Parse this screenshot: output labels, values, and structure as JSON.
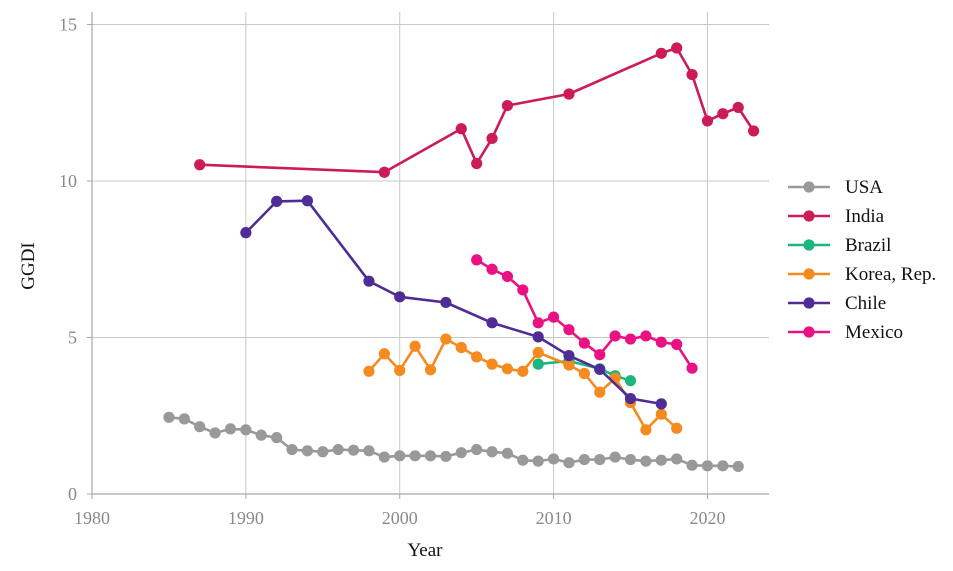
{
  "chart_data": {
    "type": "line",
    "title": "",
    "xlabel": "Year",
    "ylabel": "GGDI",
    "xlim": [
      1980,
      2024
    ],
    "ylim": [
      0,
      15.4
    ],
    "xticks": [
      1980,
      1990,
      2000,
      2010,
      2020
    ],
    "yticks": [
      0,
      5,
      10,
      15
    ],
    "grid": true,
    "legend_position": "right",
    "series": [
      {
        "name": "USA",
        "color": "#999999",
        "x": [
          1985,
          1986,
          1987,
          1988,
          1989,
          1990,
          1991,
          1992,
          1993,
          1994,
          1995,
          1996,
          1997,
          1998,
          1999,
          2000,
          2001,
          2002,
          2003,
          2004,
          2005,
          2006,
          2007,
          2008,
          2009,
          2010,
          2011,
          2012,
          2013,
          2014,
          2015,
          2016,
          2017,
          2018,
          2019,
          2020,
          2021,
          2022
        ],
        "y": [
          2.45,
          2.4,
          2.15,
          1.95,
          2.08,
          2.05,
          1.88,
          1.8,
          1.42,
          1.38,
          1.35,
          1.42,
          1.4,
          1.38,
          1.18,
          1.22,
          1.22,
          1.22,
          1.2,
          1.32,
          1.42,
          1.35,
          1.3,
          1.08,
          1.05,
          1.12,
          1.0,
          1.1,
          1.1,
          1.18,
          1.1,
          1.05,
          1.08,
          1.12,
          0.92,
          0.9,
          0.9,
          0.88
        ]
      },
      {
        "name": "India",
        "color": "#cc1c56",
        "x": [
          1987,
          1999,
          2004,
          2005,
          2006,
          2007,
          2011,
          2017,
          2018,
          2019,
          2020,
          2021,
          2022,
          2023
        ],
        "y": [
          10.52,
          10.28,
          11.67,
          10.56,
          11.36,
          12.41,
          12.78,
          14.08,
          14.25,
          13.4,
          11.92,
          12.15,
          12.35,
          11.6
        ]
      },
      {
        "name": "Brazil",
        "color": "#1cb77c",
        "x": [
          2009,
          2011,
          2013,
          2014,
          2015
        ],
        "y": [
          4.15,
          4.25,
          4.0,
          3.78,
          3.62
        ]
      },
      {
        "name": "Korea, Rep.",
        "color": "#f58a1f",
        "x": [
          1998,
          1999,
          2000,
          2001,
          2002,
          2003,
          2004,
          2005,
          2006,
          2007,
          2008,
          2009,
          2011,
          2012,
          2013,
          2014,
          2015,
          2016,
          2017,
          2018
        ],
        "y": [
          3.92,
          4.48,
          3.95,
          4.72,
          3.97,
          4.95,
          4.68,
          4.38,
          4.15,
          4.0,
          3.92,
          4.52,
          4.12,
          3.85,
          3.25,
          3.7,
          2.92,
          2.05,
          2.55,
          2.1
        ]
      },
      {
        "name": "Chile",
        "color": "#4f2d96",
        "x": [
          1990,
          1992,
          1994,
          1998,
          2000,
          2003,
          2006,
          2009,
          2011,
          2013,
          2015,
          2017
        ],
        "y": [
          8.35,
          9.35,
          9.37,
          6.8,
          6.3,
          6.12,
          5.47,
          5.02,
          4.42,
          3.98,
          3.05,
          2.88
        ]
      },
      {
        "name": "Mexico",
        "color": "#ea1282",
        "x": [
          2005,
          2006,
          2007,
          2008,
          2009,
          2010,
          2011,
          2012,
          2013,
          2014,
          2015,
          2016,
          2017,
          2018,
          2019
        ],
        "y": [
          7.48,
          7.18,
          6.95,
          6.52,
          5.47,
          5.65,
          5.25,
          4.82,
          4.45,
          5.05,
          4.95,
          5.05,
          4.85,
          4.78,
          4.02
        ]
      }
    ]
  }
}
